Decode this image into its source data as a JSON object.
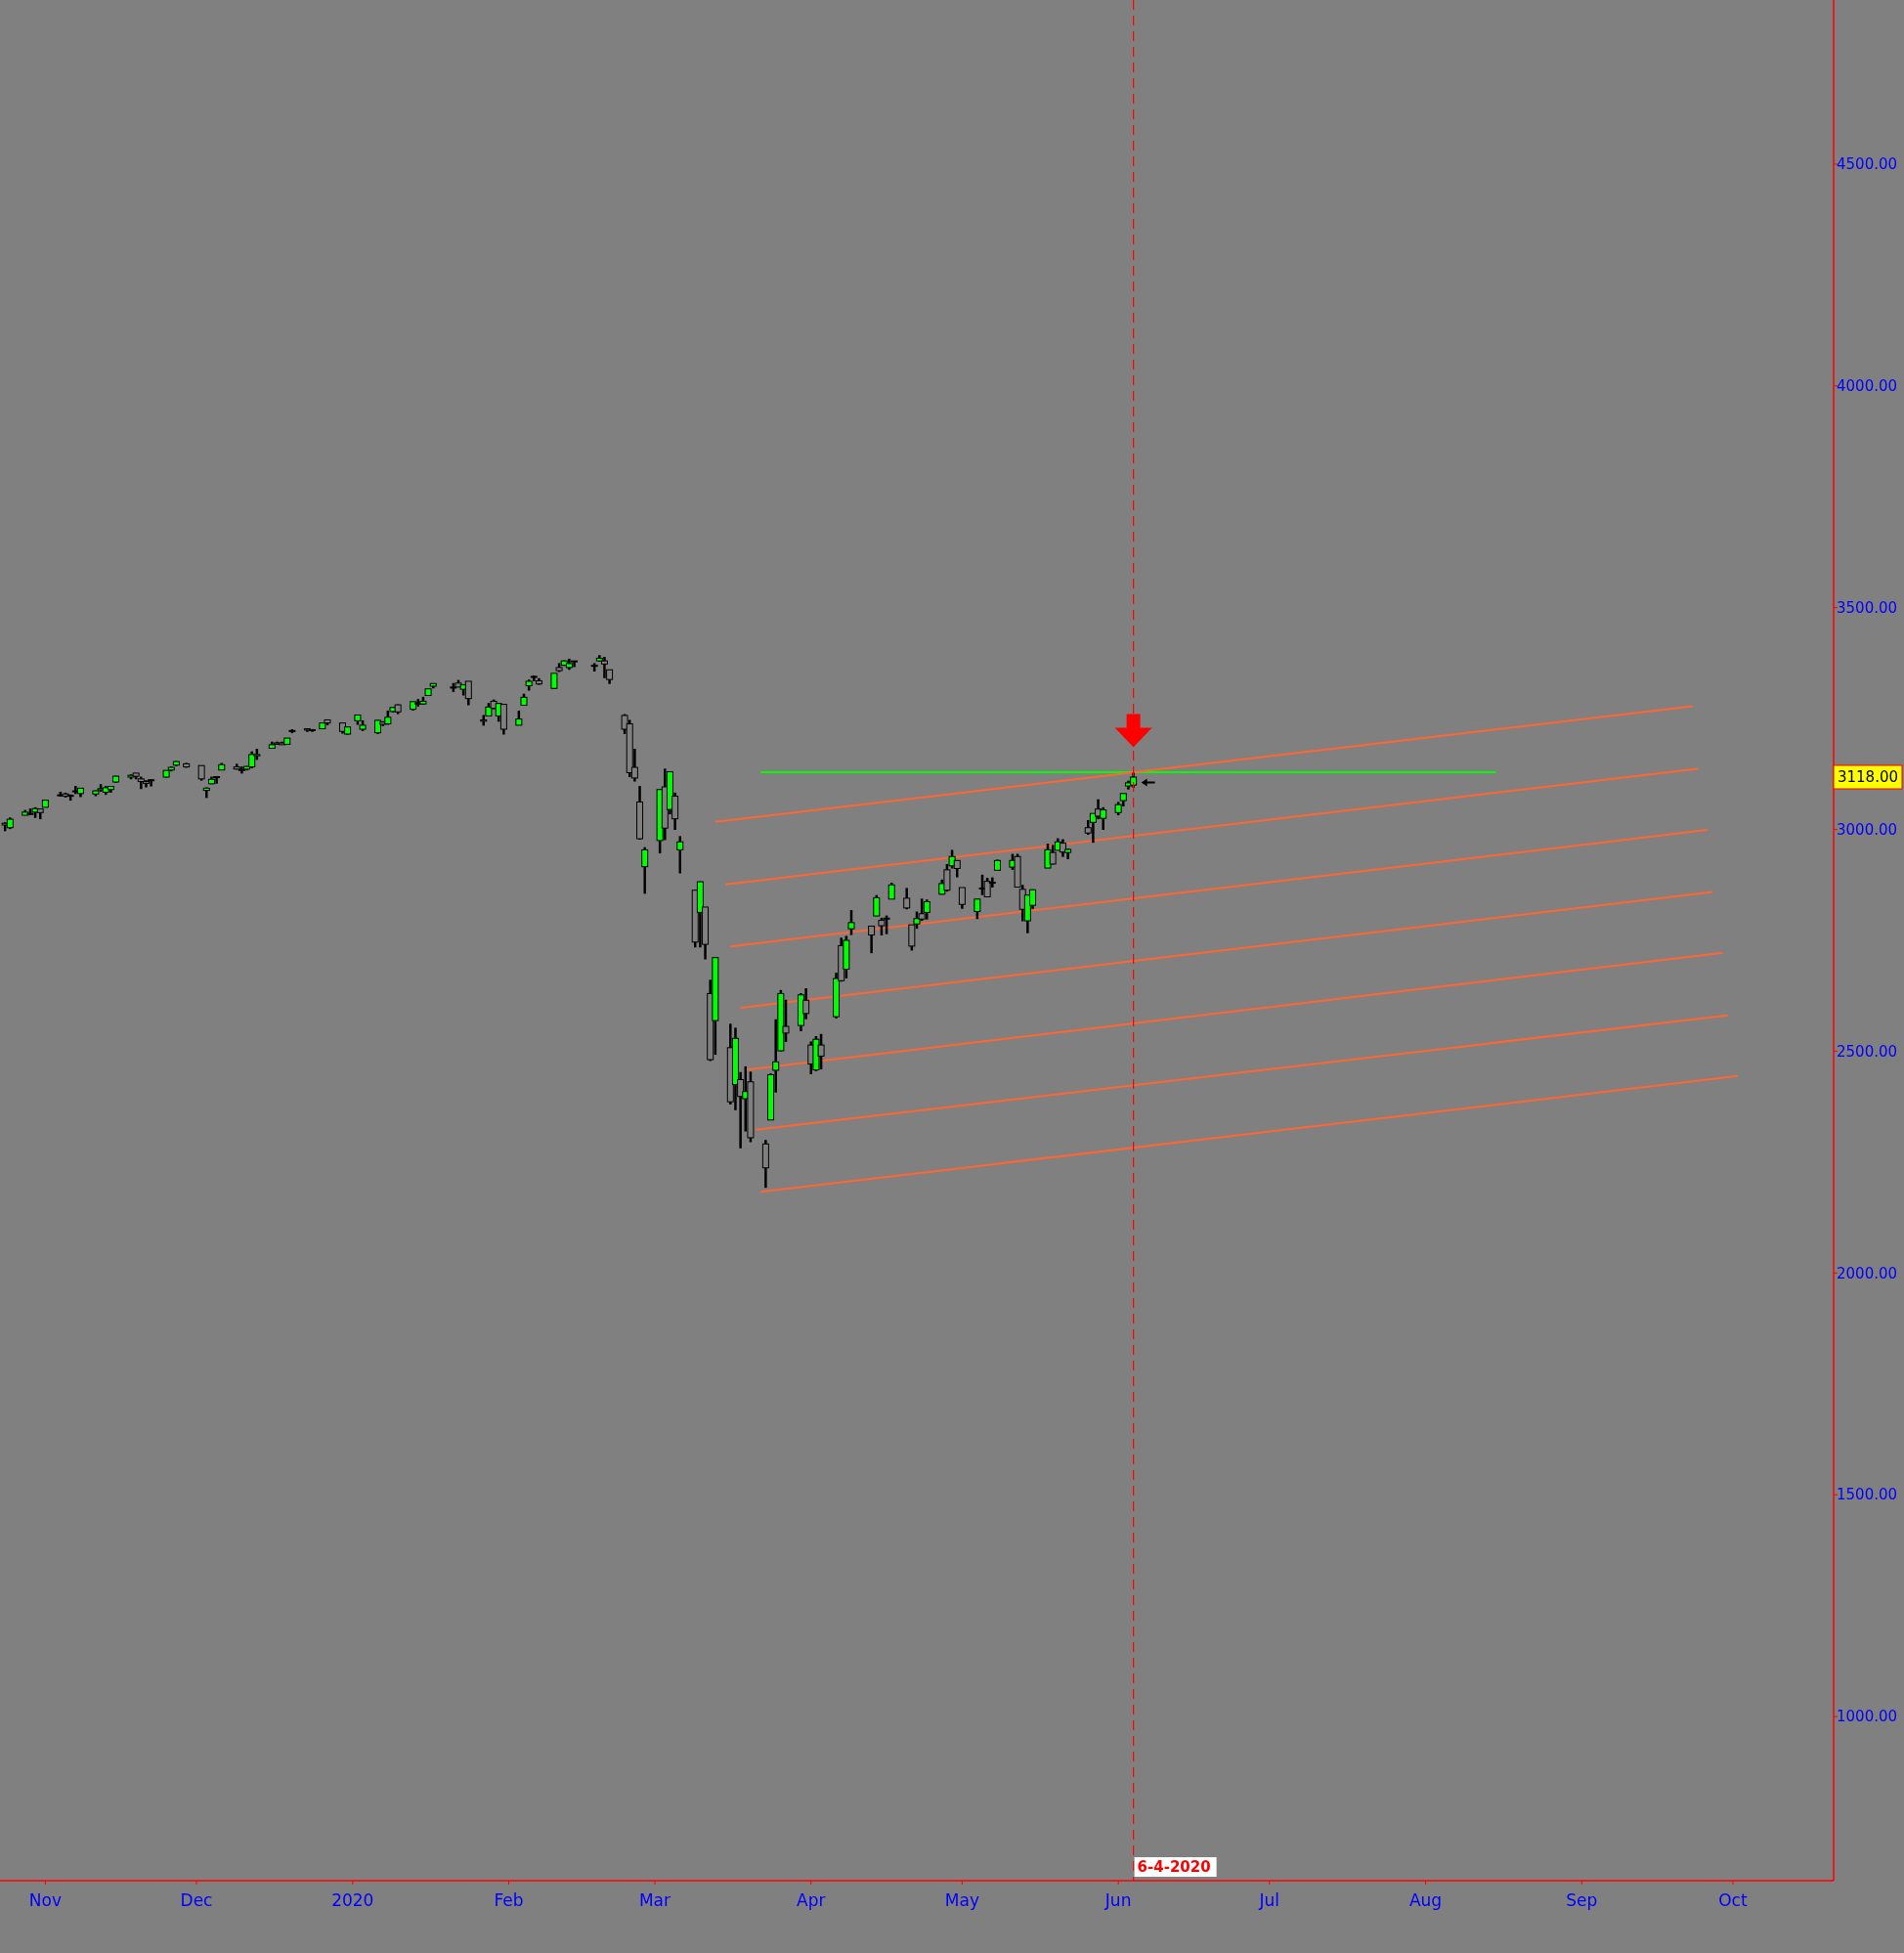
{
  "chart_data": {
    "type": "candlestick",
    "x": [
      "2019-10-24",
      "2019-10-25",
      "2019-10-28",
      "2019-10-29",
      "2019-10-30",
      "2019-10-31",
      "2019-11-01",
      "2019-11-04",
      "2019-11-05",
      "2019-11-06",
      "2019-11-07",
      "2019-11-08",
      "2019-11-11",
      "2019-11-12",
      "2019-11-13",
      "2019-11-14",
      "2019-11-15",
      "2019-11-18",
      "2019-11-19",
      "2019-11-20",
      "2019-11-21",
      "2019-11-22",
      "2019-11-25",
      "2019-11-26",
      "2019-11-27",
      "2019-11-29",
      "2019-12-02",
      "2019-12-03",
      "2019-12-04",
      "2019-12-05",
      "2019-12-06",
      "2019-12-09",
      "2019-12-10",
      "2019-12-11",
      "2019-12-12",
      "2019-12-13",
      "2019-12-16",
      "2019-12-17",
      "2019-12-18",
      "2019-12-19",
      "2019-12-20",
      "2019-12-23",
      "2019-12-24",
      "2019-12-26",
      "2019-12-27",
      "2019-12-30",
      "2019-12-31",
      "2020-01-02",
      "2020-01-03",
      "2020-01-06",
      "2020-01-07",
      "2020-01-08",
      "2020-01-09",
      "2020-01-10",
      "2020-01-13",
      "2020-01-14",
      "2020-01-15",
      "2020-01-16",
      "2020-01-17",
      "2020-01-21",
      "2020-01-22",
      "2020-01-23",
      "2020-01-24",
      "2020-01-27",
      "2020-01-28",
      "2020-01-29",
      "2020-01-30",
      "2020-01-31",
      "2020-02-03",
      "2020-02-04",
      "2020-02-05",
      "2020-02-06",
      "2020-02-07",
      "2020-02-10",
      "2020-02-11",
      "2020-02-12",
      "2020-02-13",
      "2020-02-14",
      "2020-02-18",
      "2020-02-19",
      "2020-02-20",
      "2020-02-21",
      "2020-02-24",
      "2020-02-25",
      "2020-02-26",
      "2020-02-27",
      "2020-02-28",
      "2020-03-02",
      "2020-03-03",
      "2020-03-04",
      "2020-03-05",
      "2020-03-06",
      "2020-03-09",
      "2020-03-10",
      "2020-03-11",
      "2020-03-12",
      "2020-03-13",
      "2020-03-16",
      "2020-03-17",
      "2020-03-18",
      "2020-03-19",
      "2020-03-20",
      "2020-03-23",
      "2020-03-24",
      "2020-03-25",
      "2020-03-26",
      "2020-03-27",
      "2020-03-30",
      "2020-03-31",
      "2020-04-01",
      "2020-04-02",
      "2020-04-03",
      "2020-04-06",
      "2020-04-07",
      "2020-04-08",
      "2020-04-09",
      "2020-04-13",
      "2020-04-14",
      "2020-04-15",
      "2020-04-16",
      "2020-04-17",
      "2020-04-20",
      "2020-04-21",
      "2020-04-22",
      "2020-04-23",
      "2020-04-24",
      "2020-04-27",
      "2020-04-28",
      "2020-04-29",
      "2020-04-30",
      "2020-05-01",
      "2020-05-04",
      "2020-05-05",
      "2020-05-06",
      "2020-05-07",
      "2020-05-08",
      "2020-05-11",
      "2020-05-12",
      "2020-05-13",
      "2020-05-14",
      "2020-05-15",
      "2020-05-18",
      "2020-05-19",
      "2020-05-20",
      "2020-05-21",
      "2020-05-22",
      "2020-05-26",
      "2020-05-27",
      "2020-05-28",
      "2020-05-29",
      "2020-06-01",
      "2020-06-02",
      "2020-06-03",
      "2020-06-04"
    ],
    "ohlc": [
      [
        3014,
        3016,
        2996,
        3010
      ],
      [
        3004,
        3027,
        3001,
        3023
      ],
      [
        3032,
        3044,
        3032,
        3039
      ],
      [
        3036,
        3047,
        3032,
        3036
      ],
      [
        3039,
        3050,
        3026,
        3047
      ],
      [
        3046,
        3046,
        3023,
        3038
      ],
      [
        3050,
        3067,
        3050,
        3066
      ],
      [
        3078,
        3085,
        3074,
        3078
      ],
      [
        3080,
        3083,
        3072,
        3075
      ],
      [
        3075,
        3079,
        3065,
        3077
      ],
      [
        3087,
        3098,
        3080,
        3085
      ],
      [
        3081,
        3093,
        3073,
        3093
      ],
      [
        3080,
        3088,
        3075,
        3087
      ],
      [
        3089,
        3102,
        3085,
        3092
      ],
      [
        3084,
        3098,
        3078,
        3094
      ],
      [
        3090,
        3098,
        3083,
        3097
      ],
      [
        3107,
        3121,
        3105,
        3120
      ],
      [
        3118,
        3124,
        3113,
        3122
      ],
      [
        3127,
        3127,
        3113,
        3120
      ],
      [
        3114,
        3119,
        3091,
        3108
      ],
      [
        3108,
        3111,
        3095,
        3104
      ],
      [
        3112,
        3113,
        3097,
        3110
      ],
      [
        3118,
        3133,
        3117,
        3133
      ],
      [
        3134,
        3142,
        3131,
        3140
      ],
      [
        3145,
        3154,
        3143,
        3153
      ],
      [
        3148,
        3150,
        3139,
        3141
      ],
      [
        3144,
        3144,
        3110,
        3114
      ],
      [
        3088,
        3095,
        3071,
        3093
      ],
      [
        3103,
        3119,
        3102,
        3113
      ],
      [
        3119,
        3119,
        3103,
        3117
      ],
      [
        3134,
        3150,
        3134,
        3146
      ],
      [
        3141,
        3148,
        3135,
        3136
      ],
      [
        3135,
        3142,
        3126,
        3133
      ],
      [
        3136,
        3143,
        3133,
        3142
      ],
      [
        3141,
        3176,
        3138,
        3169
      ],
      [
        3166,
        3182,
        3157,
        3169
      ],
      [
        3183,
        3198,
        3183,
        3191
      ],
      [
        3195,
        3198,
        3191,
        3192
      ],
      [
        3195,
        3198,
        3191,
        3191
      ],
      [
        3192,
        3206,
        3192,
        3206
      ],
      [
        3223,
        3226,
        3217,
        3221
      ],
      [
        3227,
        3227,
        3220,
        3224
      ],
      [
        3225,
        3226,
        3220,
        3223
      ],
      [
        3227,
        3240,
        3227,
        3240
      ],
      [
        3247,
        3248,
        3235,
        3240
      ],
      [
        3240,
        3240,
        3216,
        3221
      ],
      [
        3215,
        3231,
        3213,
        3231
      ],
      [
        3245,
        3258,
        3236,
        3258
      ],
      [
        3226,
        3246,
        3222,
        3235
      ],
      [
        3218,
        3247,
        3215,
        3246
      ],
      [
        3242,
        3244,
        3233,
        3237
      ],
      [
        3238,
        3268,
        3236,
        3253
      ],
      [
        3266,
        3275,
        3264,
        3275
      ],
      [
        3281,
        3282,
        3260,
        3265
      ],
      [
        3271,
        3288,
        3268,
        3288
      ],
      [
        3285,
        3294,
        3277,
        3283
      ],
      [
        3283,
        3299,
        3281,
        3289
      ],
      [
        3302,
        3317,
        3302,
        3317
      ],
      [
        3323,
        3329,
        3318,
        3329
      ],
      [
        3321,
        3330,
        3310,
        3321
      ],
      [
        3330,
        3337,
        3321,
        3321
      ],
      [
        3316,
        3326,
        3302,
        3326
      ],
      [
        3334,
        3334,
        3280,
        3295
      ],
      [
        3247,
        3258,
        3234,
        3244
      ],
      [
        3256,
        3285,
        3256,
        3276
      ],
      [
        3289,
        3293,
        3271,
        3273
      ],
      [
        3256,
        3285,
        3243,
        3284
      ],
      [
        3282,
        3282,
        3214,
        3226
      ],
      [
        3235,
        3268,
        3235,
        3249
      ],
      [
        3280,
        3306,
        3280,
        3298
      ],
      [
        3324,
        3338,
        3313,
        3334
      ],
      [
        3344,
        3347,
        3334,
        3345
      ],
      [
        3335,
        3341,
        3326,
        3328
      ],
      [
        3318,
        3352,
        3317,
        3352
      ],
      [
        3365,
        3375,
        3355,
        3358
      ],
      [
        3370,
        3381,
        3369,
        3380
      ],
      [
        3365,
        3385,
        3360,
        3374
      ],
      [
        3378,
        3380,
        3366,
        3380
      ],
      [
        3369,
        3375,
        3356,
        3370
      ],
      [
        3380,
        3393,
        3378,
        3386
      ],
      [
        3380,
        3389,
        3341,
        3373
      ],
      [
        3360,
        3360,
        3328,
        3338
      ],
      [
        3257,
        3260,
        3215,
        3226
      ],
      [
        3238,
        3247,
        3118,
        3128
      ],
      [
        3140,
        3182,
        3108,
        3116
      ],
      [
        3062,
        3098,
        2977,
        2979
      ],
      [
        2916,
        2960,
        2855,
        2954
      ],
      [
        2975,
        3090,
        2946,
        3090
      ],
      [
        3096,
        3137,
        2976,
        3003
      ],
      [
        3045,
        3130,
        3034,
        3130
      ],
      [
        3075,
        3083,
        2999,
        3024
      ],
      [
        2954,
        2985,
        2901,
        2972
      ],
      [
        2863,
        2863,
        2734,
        2746
      ],
      [
        2813,
        2883,
        2734,
        2882
      ],
      [
        2825,
        2825,
        2707,
        2741
      ],
      [
        2630,
        2661,
        2478,
        2481
      ],
      [
        2569,
        2711,
        2492,
        2711
      ],
      [
        2508,
        2562,
        2380,
        2386
      ],
      [
        2425,
        2553,
        2367,
        2529
      ],
      [
        2436,
        2453,
        2281,
        2398
      ],
      [
        2393,
        2466,
        2319,
        2409
      ],
      [
        2431,
        2454,
        2295,
        2305
      ],
      [
        2291,
        2300,
        2192,
        2237
      ],
      [
        2345,
        2450,
        2345,
        2447
      ],
      [
        2457,
        2572,
        2407,
        2476
      ],
      [
        2501,
        2638,
        2500,
        2630
      ],
      [
        2556,
        2616,
        2521,
        2541
      ],
      [
        2558,
        2631,
        2545,
        2627
      ],
      [
        2615,
        2642,
        2572,
        2585
      ],
      [
        2514,
        2522,
        2448,
        2471
      ],
      [
        2458,
        2534,
        2455,
        2527
      ],
      [
        2514,
        2539,
        2459,
        2489
      ],
      [
        2578,
        2677,
        2574,
        2664
      ],
      [
        2738,
        2756,
        2657,
        2659
      ],
      [
        2685,
        2760,
        2664,
        2750
      ],
      [
        2776,
        2818,
        2762,
        2790
      ],
      [
        2782,
        2782,
        2721,
        2762
      ],
      [
        2805,
        2852,
        2805,
        2846
      ],
      [
        2795,
        2801,
        2761,
        2783
      ],
      [
        2800,
        2806,
        2764,
        2800
      ],
      [
        2843,
        2880,
        2843,
        2875
      ],
      [
        2845,
        2868,
        2820,
        2823
      ],
      [
        2785,
        2785,
        2727,
        2737
      ],
      [
        2787,
        2815,
        2776,
        2799
      ],
      [
        2810,
        2844,
        2794,
        2798
      ],
      [
        2813,
        2842,
        2797,
        2837
      ],
      [
        2854,
        2887,
        2853,
        2878
      ],
      [
        2909,
        2922,
        2860,
        2863
      ],
      [
        2918,
        2954,
        2912,
        2939
      ],
      [
        2930,
        2930,
        2892,
        2912
      ],
      [
        2869,
        2869,
        2821,
        2831
      ],
      [
        2815,
        2844,
        2798,
        2843
      ],
      [
        2868,
        2898,
        2852,
        2868
      ],
      [
        2883,
        2891,
        2847,
        2848
      ],
      [
        2879,
        2892,
        2869,
        2881
      ],
      [
        2908,
        2932,
        2907,
        2930
      ],
      [
        2915,
        2945,
        2909,
        2930
      ],
      [
        2939,
        2945,
        2869,
        2870
      ],
      [
        2865,
        2875,
        2793,
        2820
      ],
      [
        2794,
        2853,
        2766,
        2852
      ],
      [
        2829,
        2865,
        2821,
        2864
      ],
      [
        2913,
        2968,
        2913,
        2954
      ],
      [
        2948,
        2965,
        2921,
        2922
      ],
      [
        2953,
        2980,
        2953,
        2972
      ],
      [
        2969,
        2978,
        2938,
        2949
      ],
      [
        2948,
        2957,
        2933,
        2955
      ],
      [
        3004,
        3021,
        2988,
        2992
      ],
      [
        3016,
        3036,
        2970,
        3036
      ],
      [
        3046,
        3068,
        3023,
        3030
      ],
      [
        3025,
        3050,
        2999,
        3044
      ],
      [
        3038,
        3062,
        3032,
        3056
      ],
      [
        3065,
        3081,
        3052,
        3081
      ],
      [
        3098,
        3110,
        3090,
        3105
      ],
      [
        3100,
        3128,
        3094,
        3118
      ]
    ],
    "series": [
      {
        "type": "line",
        "color": "#00ff00",
        "x": [
          "2020-03-22",
          "2020-08-15"
        ],
        "values": [
          3129,
          3129
        ]
      },
      {
        "type": "line",
        "color": "#ff6633",
        "x": [
          "2020-03-13",
          "2020-09-23"
        ],
        "values": [
          3017,
          3278
        ]
      },
      {
        "type": "line",
        "color": "#ff6633",
        "x": [
          "2020-03-15",
          "2020-09-24"
        ],
        "values": [
          2876,
          3137
        ]
      },
      {
        "type": "line",
        "color": "#ff6633",
        "x": [
          "2020-03-16",
          "2020-09-26"
        ],
        "values": [
          2736,
          2999
        ]
      },
      {
        "type": "line",
        "color": "#ff6633",
        "x": [
          "2020-03-18",
          "2020-09-27"
        ],
        "values": [
          2598,
          2859
        ]
      },
      {
        "type": "line",
        "color": "#ff6633",
        "x": [
          "2020-03-19",
          "2020-09-29"
        ],
        "values": [
          2458,
          2722
        ]
      },
      {
        "type": "line",
        "color": "#ff6633",
        "x": [
          "2020-03-21",
          "2020-09-30"
        ],
        "values": [
          2323,
          2581
        ]
      },
      {
        "type": "line",
        "color": "#ff6633",
        "x": [
          "2020-03-22",
          "2020-10-02"
        ],
        "values": [
          2183,
          2444
        ]
      }
    ],
    "xlim": [
      "2019-10-23",
      "2020-10-21"
    ],
    "xticks": [
      {
        "value": "2019-11-01",
        "label": "Nov"
      },
      {
        "value": "2019-12-01",
        "label": "Dec"
      },
      {
        "value": "2020-01-01",
        "label": "2020"
      },
      {
        "value": "2020-02-01",
        "label": "Feb"
      },
      {
        "value": "2020-03-01",
        "label": "Mar"
      },
      {
        "value": "2020-04-01",
        "label": "Apr"
      },
      {
        "value": "2020-05-01",
        "label": "May"
      },
      {
        "value": "2020-06-01",
        "label": "Jun"
      },
      {
        "value": "2020-07-01",
        "label": "Jul"
      },
      {
        "value": "2020-08-01",
        "label": "Aug"
      },
      {
        "value": "2020-09-01",
        "label": "Sep"
      },
      {
        "value": "2020-10-01",
        "label": "Oct"
      }
    ],
    "ylim": [
      630,
      4870
    ],
    "yticks": [
      {
        "value": 1000,
        "label": "1000.00"
      },
      {
        "value": 1500,
        "label": "1500.00"
      },
      {
        "value": 2000,
        "label": "2000.00"
      },
      {
        "value": 2500,
        "label": "2500.00"
      },
      {
        "value": 3000,
        "label": "3000.00"
      },
      {
        "value": 3500,
        "label": "3500.00"
      },
      {
        "value": 4000,
        "label": "4000.00"
      },
      {
        "value": 4500,
        "label": "4500.00"
      }
    ],
    "ref_lines": [
      {
        "axis": "x",
        "value": "2020-06-04",
        "label": "6-4-2020",
        "color": "#ff0000",
        "line_style": "dashed"
      }
    ],
    "annotations": [
      "3118.00"
    ],
    "grid": false
  }
}
